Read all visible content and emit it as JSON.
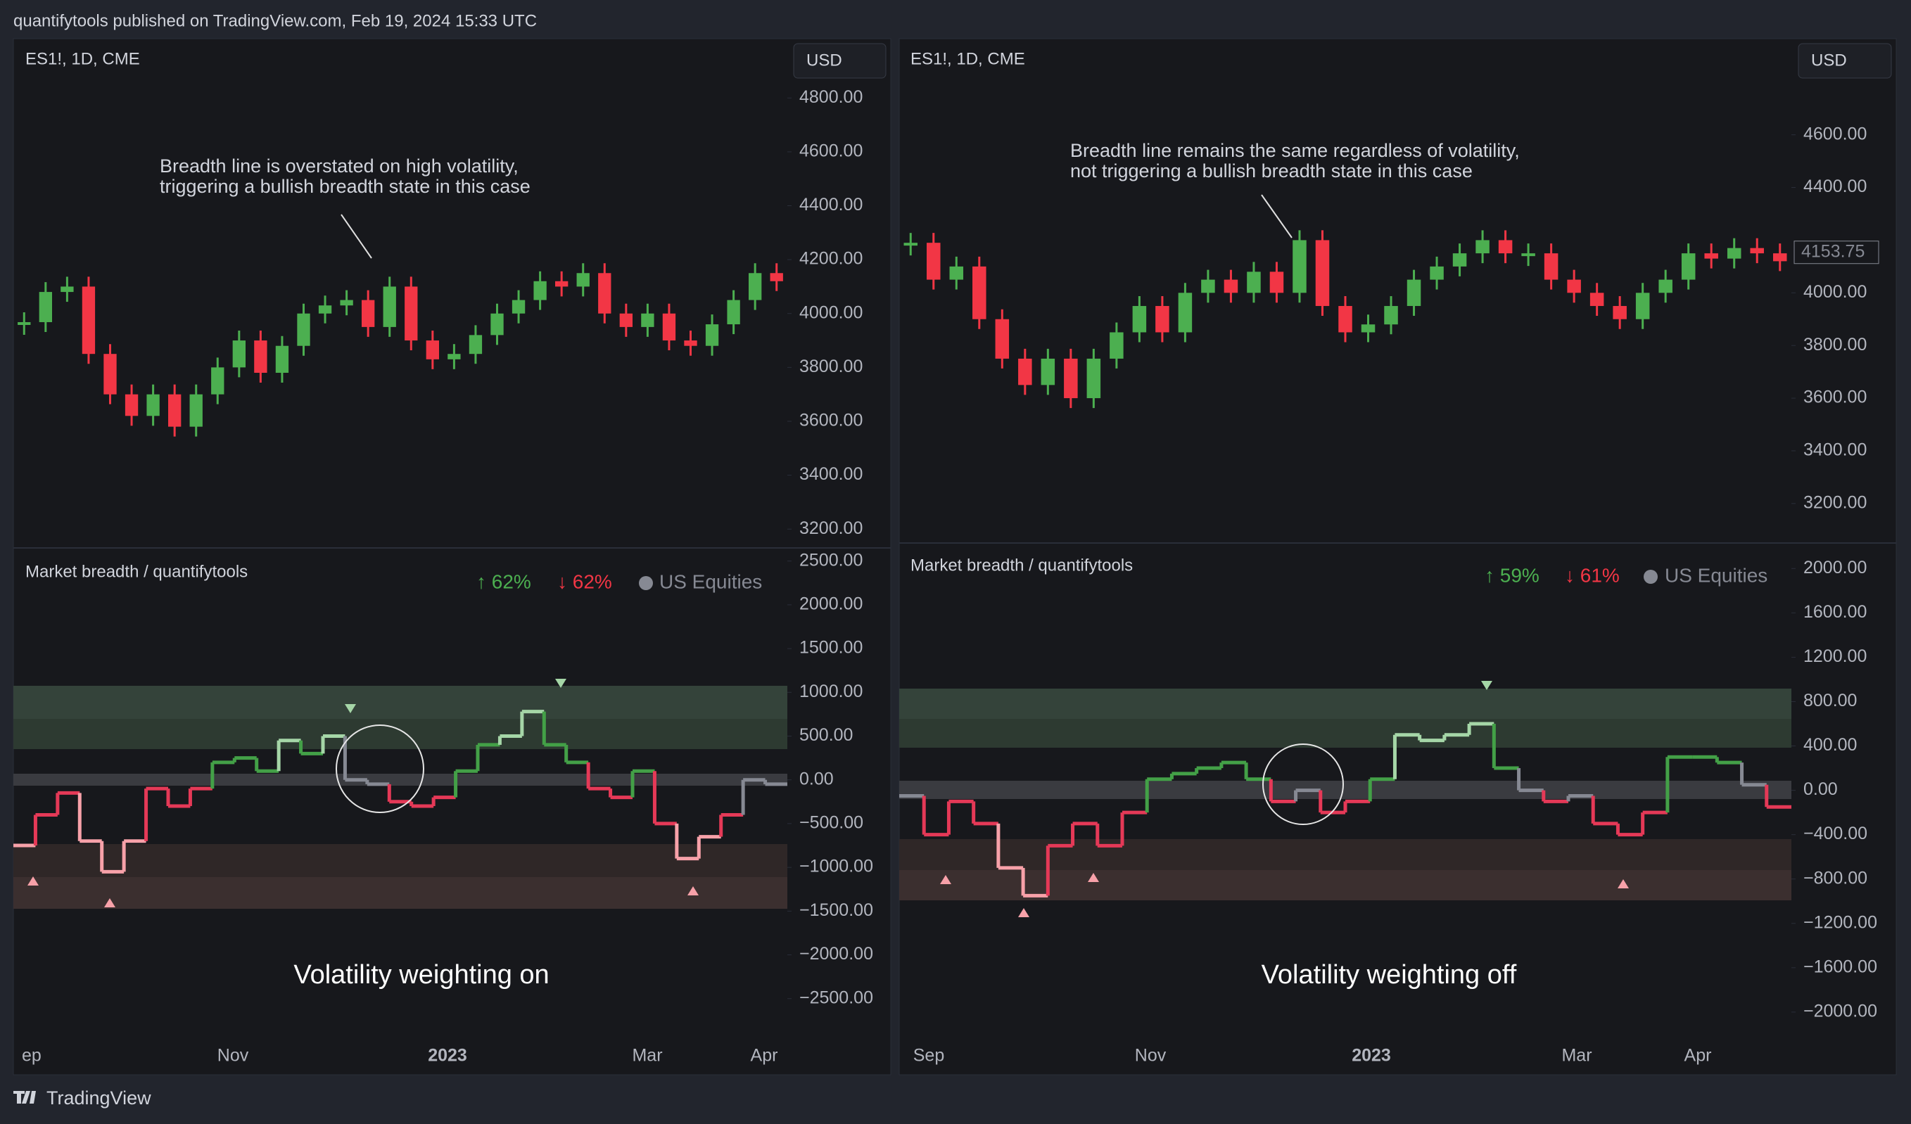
{
  "header": {
    "published": "quantifytools published on TradingView.com, Feb 19, 2024 15:33 UTC"
  },
  "palette": {
    "up": "#4caf50",
    "down": "#f23645",
    "line_high": "#a5d6a7",
    "line_up": "#43a047",
    "line_flat": "#868993",
    "line_down": "#e53957",
    "line_low": "#f7a1a9"
  },
  "panels": [
    {
      "symbol": "ES1!, 1D, CME",
      "currency": "USD",
      "annotation": [
        "Breadth line is overstated on high volatility,",
        "triggering a bullish breadth state in this case"
      ],
      "price": {
        "ylim": [
          3130,
          5020
        ],
        "yticks": [
          {
            "value": 3200,
            "label": "3200.00"
          },
          {
            "value": 3400,
            "label": "3400.00"
          },
          {
            "value": 3600,
            "label": "3600.00"
          },
          {
            "value": 3800,
            "label": "3800.00"
          },
          {
            "value": 4000,
            "label": "4000.00"
          },
          {
            "value": 4200,
            "label": "4200.00"
          },
          {
            "value": 4400,
            "label": "4400.00"
          },
          {
            "value": 4600,
            "label": "4600.00"
          },
          {
            "value": 4800,
            "label": "4800.00"
          }
        ],
        "closes": [
          3968,
          4080,
          4100,
          3850,
          3700,
          3620,
          3700,
          3580,
          3700,
          3800,
          3900,
          3780,
          3880,
          4000,
          4030,
          4050,
          3950,
          4100,
          3900,
          3830,
          3850,
          3920,
          4000,
          4050,
          4120,
          4100,
          4150,
          4000,
          3950,
          4000,
          3900,
          3880,
          3960,
          4050,
          4150,
          4120
        ]
      },
      "breadth": {
        "title": "Market breadth / quantifytools",
        "legend_up": "↑ 62%",
        "legend_down": "↓ 62%",
        "legend_name": "US Equities",
        "ylim": [
          -2920,
          2650
        ],
        "yticks": [
          {
            "value": -2500,
            "label": "−2500.00"
          },
          {
            "value": -2000,
            "label": "−2000.00"
          },
          {
            "value": -1500,
            "label": "−1500.00"
          },
          {
            "value": -1000,
            "label": "−1000.00"
          },
          {
            "value": -500,
            "label": "−500.00"
          },
          {
            "value": 0,
            "label": "0.00"
          },
          {
            "value": 500,
            "label": "500.00"
          },
          {
            "value": 1000,
            "label": "1000.00"
          },
          {
            "value": 1500,
            "label": "1500.00"
          },
          {
            "value": 2000,
            "label": "2000.00"
          },
          {
            "value": 2500,
            "label": "2500.00"
          }
        ],
        "values": [
          -750,
          -400,
          -150,
          -700,
          -1050,
          -700,
          -100,
          -300,
          -100,
          200,
          250,
          100,
          450,
          300,
          500,
          0,
          -50,
          -250,
          -300,
          -200,
          100,
          400,
          500,
          780,
          400,
          200,
          -100,
          -200,
          100,
          -500,
          -900,
          -650,
          -400,
          0,
          -50
        ]
      },
      "xaxis": [
        "ep",
        "Nov",
        "2023",
        "Mar",
        "Apr"
      ],
      "caption": "Volatility weighting on"
    },
    {
      "symbol": "ES1!, 1D, CME",
      "currency": "USD",
      "annotation": [
        "Breadth line remains the same regardless of volatility,",
        "not triggering a bullish breadth state in this case"
      ],
      "price": {
        "ylim": [
          3050,
          4965
        ],
        "last_price": 4153.75,
        "yticks": [
          {
            "value": 3200,
            "label": "3200.00"
          },
          {
            "value": 3400,
            "label": "3400.00"
          },
          {
            "value": 3600,
            "label": "3600.00"
          },
          {
            "value": 3800,
            "label": "3800.00"
          },
          {
            "value": 4000,
            "label": "4000.00"
          },
          {
            "value": 4400,
            "label": "4400.00"
          },
          {
            "value": 4600,
            "label": "4600.00"
          }
        ],
        "closes": [
          4190,
          4050,
          4100,
          3900,
          3750,
          3650,
          3750,
          3600,
          3750,
          3850,
          3950,
          3850,
          4000,
          4050,
          4000,
          4080,
          4000,
          4200,
          3950,
          3850,
          3880,
          3950,
          4050,
          4100,
          4150,
          4200,
          4150,
          4150,
          4050,
          4000,
          3950,
          3900,
          4000,
          4050,
          4150,
          4130,
          4170,
          4150,
          4120
        ]
      },
      "breadth": {
        "title": "Market breadth / quantifytools",
        "legend_up": "↑ 59%",
        "legend_down": "↓ 61%",
        "legend_name": "US Equities",
        "ylim": [
          -2210,
          2230
        ],
        "yticks": [
          {
            "value": -2000,
            "label": "−2000.00"
          },
          {
            "value": -1600,
            "label": "−1600.00"
          },
          {
            "value": -1200,
            "label": "−1200.00"
          },
          {
            "value": -800,
            "label": "−800.00"
          },
          {
            "value": -400,
            "label": "−400.00"
          },
          {
            "value": 0,
            "label": "0.00"
          },
          {
            "value": 400,
            "label": "400.00"
          },
          {
            "value": 800,
            "label": "800.00"
          },
          {
            "value": 1200,
            "label": "1200.00"
          },
          {
            "value": 1600,
            "label": "1600.00"
          },
          {
            "value": 2000,
            "label": "2000.00"
          }
        ],
        "values": [
          -50,
          -400,
          -100,
          -300,
          -700,
          -950,
          -500,
          -300,
          -500,
          -200,
          100,
          150,
          200,
          250,
          100,
          -100,
          0,
          -200,
          -100,
          100,
          500,
          450,
          500,
          600,
          200,
          0,
          -100,
          -50,
          -300,
          -400,
          -200,
          300,
          300,
          250,
          50,
          -150
        ]
      },
      "xaxis": [
        "Sep",
        "Nov",
        "2023",
        "Mar",
        "Apr"
      ],
      "caption": "Volatility weighting off"
    }
  ],
  "footer": {
    "brand": "TradingView"
  }
}
